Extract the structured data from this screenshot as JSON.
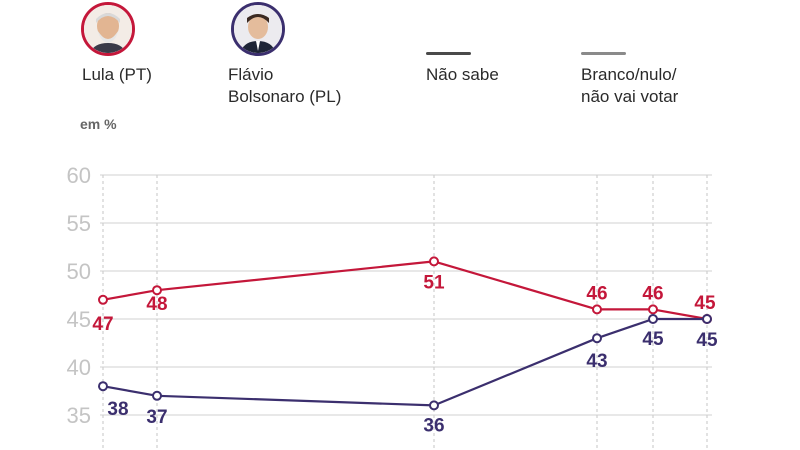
{
  "legend": {
    "items": [
      {
        "label": "Lula (PT)",
        "color": "#c4173a",
        "icon": "lula-portrait"
      },
      {
        "label": "Flávio\nBolsonaro (PL)",
        "color": "#3b2f6e",
        "icon": "flavio-portrait"
      },
      {
        "label": "Não sabe",
        "color": "#4a4a4a"
      },
      {
        "label": "Branco/nulo/\nnão vai votar",
        "color": "#8a8a8a"
      }
    ]
  },
  "unit": "em %",
  "chart_data": {
    "type": "line",
    "ylim": [
      33,
      60
    ],
    "yticks": [
      35,
      40,
      45,
      50,
      55,
      60
    ],
    "x": [
      1,
      2,
      3,
      4,
      5,
      6
    ],
    "grid": true,
    "series": [
      {
        "name": "Lula (PT)",
        "color": "#c4173a",
        "values": [
          47,
          48,
          51,
          46,
          46,
          45
        ],
        "labels": [
          "47",
          "48",
          "51",
          "46",
          "46",
          "45"
        ]
      },
      {
        "name": "Flávio Bolsonaro (PL)",
        "color": "#3b2f6e",
        "values": [
          38,
          37,
          36,
          43,
          45,
          45
        ],
        "labels": [
          "38",
          "37",
          "36",
          "43",
          "45",
          "45"
        ]
      }
    ]
  }
}
